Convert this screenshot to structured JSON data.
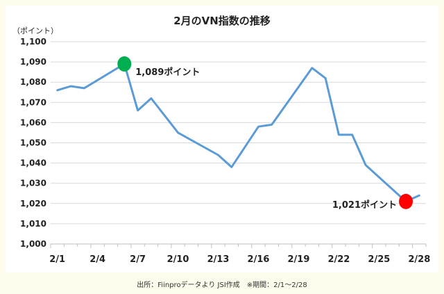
{
  "chart_data": {
    "type": "line",
    "title": "2月のVN指数の推移",
    "ylabel": "（ポイント）",
    "ylim": [
      1000,
      1100
    ],
    "yticks": [
      "1,000",
      "1,010",
      "1,020",
      "1,030",
      "1,040",
      "1,050",
      "1,060",
      "1,070",
      "1,080",
      "1,090",
      "1,100"
    ],
    "xticks": [
      "2/1",
      "2/4",
      "2/7",
      "2/10",
      "2/13",
      "2/16",
      "2/19",
      "2/22",
      "2/25",
      "2/28"
    ],
    "grid": true,
    "series": [
      {
        "color": "#5b9bd5",
        "x": [
          "2/1",
          "2/2",
          "2/3",
          "2/6",
          "2/7",
          "2/8",
          "2/10",
          "2/13",
          "2/14",
          "2/15",
          "2/16",
          "2/17",
          "2/20",
          "2/21",
          "2/22",
          "2/23",
          "2/24",
          "2/27",
          "2/28"
        ],
        "values": [
          1076,
          1078,
          1077,
          1089,
          1066,
          1072,
          1055,
          1044,
          1038,
          1048,
          1058,
          1059,
          1087,
          1082,
          1054,
          1054,
          1039,
          1021,
          1024
        ]
      }
    ],
    "markers": [
      {
        "x": "2/6",
        "value": 1089,
        "label": "1,089ポイント",
        "color": "#00b050"
      },
      {
        "x": "2/27",
        "value": 1021,
        "label": "1,021ポイント",
        "color": "#ff0000"
      }
    ]
  },
  "source_note": "出所：Fiinproデータより JSI作成　※期間：2/1～2/28"
}
